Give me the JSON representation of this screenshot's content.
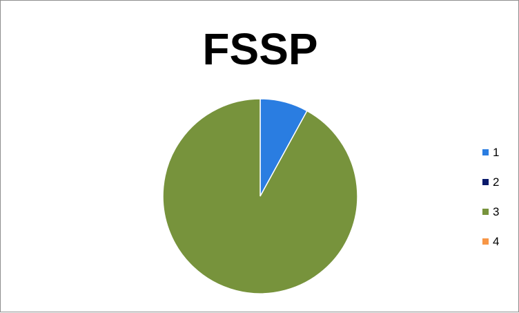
{
  "chart_data": {
    "type": "pie",
    "title": "FSSP",
    "categories": [
      "1",
      "2",
      "3",
      "4"
    ],
    "values": [
      8,
      0,
      92,
      0
    ],
    "colors": [
      "#2a7de1",
      "#0a1a6b",
      "#77933c",
      "#f79646"
    ],
    "legend_position": "right"
  }
}
